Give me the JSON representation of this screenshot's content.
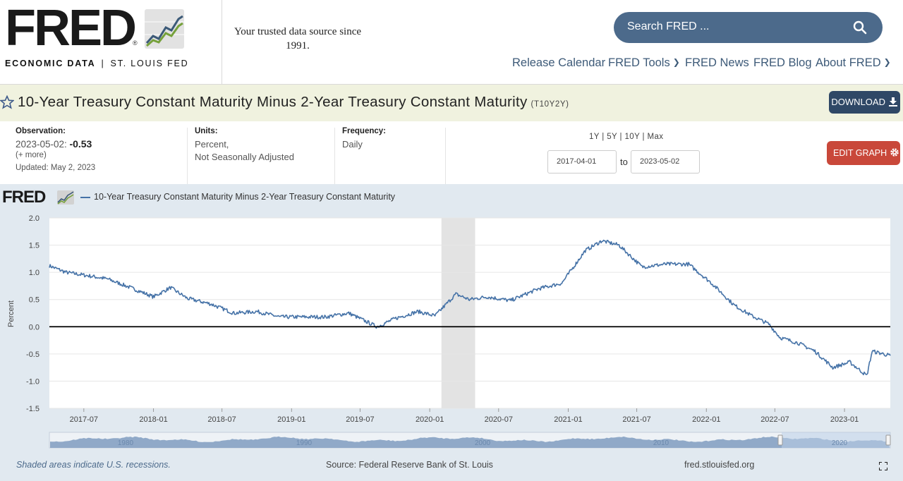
{
  "header": {
    "logo_word": "FRED",
    "logo_reg": "®",
    "logo_sub_bold": "ECONOMIC DATA",
    "logo_sub_sep": "|",
    "logo_sub_rest": "ST. LOUIS FED",
    "tagline": "Your trusted data source since 1991.",
    "search_placeholder": "Search FRED ...",
    "nav": [
      "Release Calendar",
      "FRED Tools",
      "FRED News",
      "FRED Blog",
      "About FRED"
    ]
  },
  "series": {
    "title": "10-Year Treasury Constant Maturity Minus 2-Year Treasury Constant Maturity",
    "id": "(T10Y2Y)",
    "download_label": "DOWNLOAD"
  },
  "meta": {
    "observation_label": "Observation:",
    "observation_date": "2023-05-02:",
    "observation_value": "-0.53",
    "more": "(+ more)",
    "updated": "Updated: May 2, 2023",
    "units_label": "Units:",
    "units_line1": "Percent,",
    "units_line2": "Not Seasonally Adjusted",
    "frequency_label": "Frequency:",
    "frequency_value": "Daily",
    "range_links": "1Y | 5Y | 10Y | Max",
    "start_date": "2017-04-01",
    "to_label": "to",
    "end_date": "2023-05-02",
    "edit_label": "EDIT GRAPH"
  },
  "chart": {
    "mini_logo": "FRED",
    "legend": "10-Year Treasury Constant Maturity Minus 2-Year Treasury Constant Maturity",
    "footer_note": "Shaded areas indicate U.S. recessions.",
    "footer_source": "Source: Federal Reserve Bank of St. Louis",
    "footer_url": "fred.stlouisfed.org",
    "navigator_labels": [
      "1980",
      "1990",
      "2000",
      "2010",
      "2020"
    ]
  },
  "chart_data": {
    "type": "line",
    "title": "10-Year Treasury Constant Maturity Minus 2-Year Treasury Constant Maturity",
    "ylabel": "Percent",
    "xlabel": "",
    "ylim": [
      -1.5,
      2.0
    ],
    "yticks": [
      "2.0",
      "1.5",
      "1.0",
      "0.5",
      "0.0",
      "-0.5",
      "-1.0",
      "-1.5"
    ],
    "xticks": [
      "2017-07",
      "2018-01",
      "2018-07",
      "2019-01",
      "2019-07",
      "2020-01",
      "2020-07",
      "2021-01",
      "2021-07",
      "2022-01",
      "2022-07",
      "2023-01"
    ],
    "x_range": [
      "2017-04-01",
      "2023-05-02"
    ],
    "recession": [
      "2020-02-01",
      "2020-04-30"
    ],
    "series": [
      {
        "name": "T10Y2Y",
        "x": [
          "2017-04-01",
          "2017-05-15",
          "2017-07-01",
          "2017-09-01",
          "2017-11-01",
          "2018-01-01",
          "2018-02-15",
          "2018-04-01",
          "2018-06-01",
          "2018-08-01",
          "2018-10-01",
          "2018-12-01",
          "2019-02-01",
          "2019-04-01",
          "2019-06-01",
          "2019-08-15",
          "2019-10-01",
          "2019-12-01",
          "2020-01-15",
          "2020-03-10",
          "2020-04-15",
          "2020-06-01",
          "2020-08-01",
          "2020-10-15",
          "2020-12-15",
          "2021-02-15",
          "2021-03-31",
          "2021-05-15",
          "2021-07-15",
          "2021-09-15",
          "2021-11-15",
          "2022-01-15",
          "2022-03-15",
          "2022-05-01",
          "2022-06-15",
          "2022-07-15",
          "2022-09-01",
          "2022-10-15",
          "2022-12-01",
          "2023-01-15",
          "2023-03-01",
          "2023-03-15",
          "2023-05-02"
        ],
        "values": [
          1.12,
          1.0,
          0.95,
          0.88,
          0.72,
          0.55,
          0.72,
          0.52,
          0.42,
          0.25,
          0.28,
          0.18,
          0.18,
          0.18,
          0.25,
          0.0,
          0.15,
          0.28,
          0.2,
          0.6,
          0.5,
          0.55,
          0.48,
          0.7,
          0.8,
          1.4,
          1.58,
          1.5,
          1.1,
          1.15,
          1.15,
          0.8,
          0.4,
          0.2,
          0.05,
          -0.2,
          -0.3,
          -0.45,
          -0.75,
          -0.65,
          -0.9,
          -0.45,
          -0.53
        ]
      }
    ]
  },
  "colors": {
    "accent": "#4c6a8b",
    "line": "#4572a7",
    "title_band": "#f0f2df",
    "download": "#2f4866",
    "edit": "#c9483a",
    "chart_bg": "#e1e9f0",
    "recession": "#e3e3e3"
  }
}
